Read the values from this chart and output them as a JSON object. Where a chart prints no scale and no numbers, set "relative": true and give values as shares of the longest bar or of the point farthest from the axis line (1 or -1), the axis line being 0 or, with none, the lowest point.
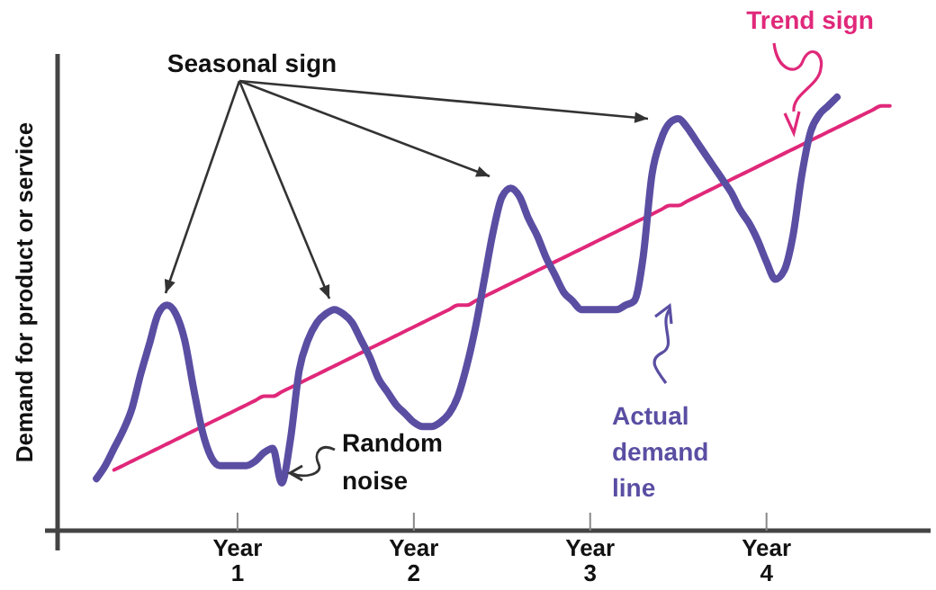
{
  "chart_data": {
    "type": "line",
    "relative": true,
    "ylabel": "Demand for product or service",
    "categories": [
      null,
      null,
      null,
      null,
      null,
      null,
      null,
      null,
      null,
      null,
      null,
      null,
      null,
      null,
      null,
      null,
      null,
      null,
      null,
      null,
      "Year 1",
      null,
      null,
      null,
      null,
      null,
      null,
      null,
      null,
      null,
      null,
      null,
      null,
      null,
      null,
      null,
      null,
      null,
      null,
      null,
      "Year 2",
      null,
      null,
      null,
      null,
      null,
      null,
      null,
      null,
      null,
      null,
      null,
      null,
      null,
      null,
      null,
      null,
      null,
      null,
      null,
      "Year 3",
      null,
      null,
      null,
      null,
      null,
      null,
      null,
      null,
      null,
      null,
      null,
      null,
      null,
      null,
      null,
      null,
      null,
      null,
      null,
      "Year 4",
      null,
      null,
      null,
      null,
      null,
      null,
      null,
      null,
      null,
      null,
      null,
      null,
      null,
      null,
      null,
      null,
      null,
      null
    ],
    "annotations": [
      "Seasonal sign",
      "Random noise"
    ],
    "series": [
      {
        "name": "Trend sign",
        "color": "#e0287a",
        "values": [
          null,
          null,
          null,
          null,
          null,
          null,
          0.14,
          0.15,
          0.16,
          0.17,
          0.18,
          0.19,
          0.2,
          0.21,
          0.22,
          0.23,
          0.24,
          0.25,
          0.26,
          0.27,
          0.28,
          0.29,
          0.3,
          0.31,
          0.31,
          0.32,
          0.33,
          0.34,
          0.35,
          0.36,
          0.37,
          0.38,
          0.39,
          0.4,
          0.41,
          0.42,
          0.43,
          0.44,
          0.45,
          0.46,
          0.47,
          0.48,
          0.49,
          0.5,
          0.51,
          0.52,
          0.52,
          0.53,
          0.54,
          0.55,
          0.56,
          0.57,
          0.58,
          0.59,
          0.6,
          0.61,
          0.62,
          0.63,
          0.64,
          0.65,
          0.66,
          0.67,
          0.68,
          0.69,
          0.7,
          0.71,
          0.72,
          0.73,
          0.74,
          0.75,
          0.75,
          0.76,
          0.77,
          0.78,
          0.79,
          0.8,
          0.81,
          0.82,
          0.83,
          0.84,
          0.85,
          0.86,
          0.87,
          0.88,
          0.89,
          0.9,
          0.91,
          0.92,
          0.93,
          0.94,
          0.95,
          0.96,
          0.97,
          0.98,
          0.98,
          null,
          null,
          null,
          null
        ]
      },
      {
        "name": "Actual demand line",
        "color": "#5a4ea3",
        "values": [
          null,
          null,
          null,
          null,
          0.12,
          0.15,
          0.19,
          0.23,
          0.28,
          0.36,
          0.43,
          0.5,
          0.52,
          0.5,
          0.44,
          0.33,
          0.23,
          0.17,
          0.15,
          0.15,
          0.15,
          0.15,
          0.16,
          0.18,
          0.19,
          0.11,
          0.21,
          0.37,
          0.44,
          0.48,
          0.5,
          0.51,
          0.5,
          0.48,
          0.44,
          0.4,
          0.35,
          0.32,
          0.29,
          0.27,
          0.25,
          0.24,
          0.24,
          0.25,
          0.27,
          0.31,
          0.38,
          0.47,
          0.58,
          0.69,
          0.77,
          0.79,
          0.77,
          0.72,
          0.68,
          0.63,
          0.59,
          0.55,
          0.53,
          0.51,
          0.51,
          0.51,
          0.51,
          0.51,
          0.52,
          0.53,
          0.63,
          0.82,
          0.9,
          0.94,
          0.95,
          0.93,
          0.9,
          0.87,
          0.84,
          0.81,
          0.78,
          0.74,
          0.71,
          0.67,
          0.62,
          0.58,
          0.6,
          0.68,
          0.82,
          0.92,
          0.96,
          0.98,
          1,
          null,
          null,
          null,
          null,
          null,
          null,
          null,
          null,
          null,
          null
        ]
      }
    ]
  }
}
